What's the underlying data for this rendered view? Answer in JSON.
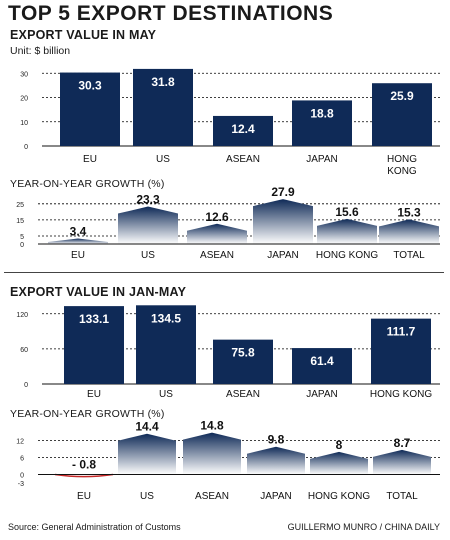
{
  "title": "TOP 5 EXPORT DESTINATIONS",
  "source": "Source: General Administration of Customs",
  "credit": "GUILLERMO MUNRO / CHINA DAILY",
  "colors": {
    "bar": "#0f2a57",
    "growth_top": "#0f2a57",
    "growth_bottom": "#ffffff",
    "negative": "#c62828",
    "gridline": "#000000"
  },
  "chart_data": [
    {
      "type": "bar",
      "title": "EXPORT VALUE IN MAY",
      "subtitle": "Unit: $ billion",
      "categories": [
        "EU",
        "US",
        "ASEAN",
        "JAPAN",
        "HONG KONG"
      ],
      "values": [
        30.3,
        31.8,
        12.4,
        18.8,
        25.9
      ],
      "value_labels": [
        "30.3",
        "31.8",
        "12.4",
        "18.8",
        "25.9"
      ],
      "yticks": [
        0,
        10,
        20,
        30
      ],
      "ylim": [
        0,
        33
      ],
      "grid": true
    },
    {
      "type": "area",
      "title": "YEAR-ON-YEAR GROWTH (%)",
      "categories": [
        "EU",
        "US",
        "ASEAN",
        "JAPAN",
        "HONG KONG",
        "TOTAL"
      ],
      "values": [
        3.4,
        23.3,
        12.6,
        27.9,
        15.6,
        15.3
      ],
      "value_labels": [
        "3.4",
        "23.3",
        "12.6",
        "27.9",
        "15.6",
        "15.3"
      ],
      "yticks": [
        0,
        5,
        15,
        25
      ],
      "ylim": [
        0,
        28
      ],
      "grid": true
    },
    {
      "type": "bar",
      "title": "EXPORT VALUE IN JAN-MAY",
      "categories": [
        "EU",
        "US",
        "ASEAN",
        "JAPAN",
        "HONG KONG"
      ],
      "values": [
        133.1,
        134.5,
        75.8,
        61.4,
        111.7
      ],
      "value_labels": [
        "133.1",
        "134.5",
        "75.8",
        "61.4",
        "111.7"
      ],
      "yticks": [
        0,
        60,
        120
      ],
      "ylim": [
        0,
        135
      ],
      "grid": true
    },
    {
      "type": "area",
      "title": "YEAR-ON-YEAR GROWTH (%)",
      "categories": [
        "EU",
        "US",
        "ASEAN",
        "JAPAN",
        "HONG KONG",
        "TOTAL"
      ],
      "values": [
        -0.8,
        14.4,
        14.8,
        9.8,
        8,
        8.7
      ],
      "value_labels": [
        "- 0.8",
        "14.4",
        "14.8",
        "9.8",
        "8",
        "8.7"
      ],
      "yticks": [
        -3,
        0,
        6,
        12
      ],
      "ylim": [
        -3,
        15
      ],
      "grid": true
    }
  ]
}
